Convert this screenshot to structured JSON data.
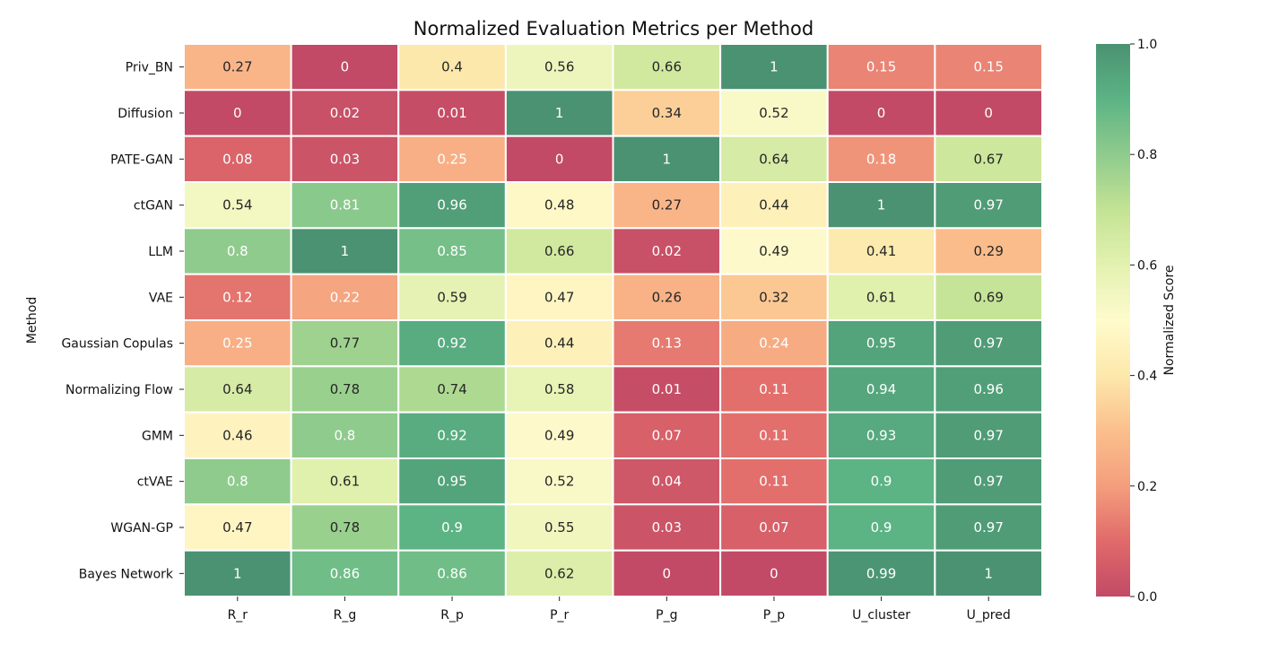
{
  "chart_data": {
    "type": "heatmap",
    "title": "Normalized Evaluation Metrics per Method",
    "xlabel": "",
    "ylabel": "Method",
    "columns": [
      "R_r",
      "R_g",
      "R_p",
      "P_r",
      "P_g",
      "P_p",
      "U_cluster",
      "U_pred"
    ],
    "rows": [
      "Priv_BN",
      "Diffusion",
      "PATE-GAN",
      "ctGAN",
      "LLM",
      "VAE",
      "Gaussian Copulas",
      "Normalizing Flow",
      "GMM",
      "ctVAE",
      "WGAN-GP",
      "Bayes Network"
    ],
    "values": [
      [
        0.27,
        0,
        0.4,
        0.56,
        0.66,
        1,
        0.15,
        0.15
      ],
      [
        0,
        0.02,
        0.01,
        1,
        0.34,
        0.52,
        0,
        0
      ],
      [
        0.08,
        0.03,
        0.25,
        0,
        1,
        0.64,
        0.18,
        0.67
      ],
      [
        0.54,
        0.81,
        0.96,
        0.48,
        0.27,
        0.44,
        1,
        0.97
      ],
      [
        0.8,
        1,
        0.85,
        0.66,
        0.02,
        0.49,
        0.41,
        0.29
      ],
      [
        0.12,
        0.22,
        0.59,
        0.47,
        0.26,
        0.32,
        0.61,
        0.69
      ],
      [
        0.25,
        0.77,
        0.92,
        0.44,
        0.13,
        0.24,
        0.95,
        0.97
      ],
      [
        0.64,
        0.78,
        0.74,
        0.58,
        0.01,
        0.11,
        0.94,
        0.96
      ],
      [
        0.46,
        0.8,
        0.92,
        0.49,
        0.07,
        0.11,
        0.93,
        0.97
      ],
      [
        0.8,
        0.61,
        0.95,
        0.52,
        0.04,
        0.11,
        0.9,
        0.97
      ],
      [
        0.47,
        0.78,
        0.9,
        0.55,
        0.03,
        0.07,
        0.9,
        0.97
      ],
      [
        1,
        0.86,
        0.86,
        0.62,
        0,
        0,
        0.99,
        1
      ]
    ],
    "colorbar": {
      "label": "Normalized Score",
      "range": [
        0,
        1
      ],
      "ticks": [
        "0.0",
        "0.2",
        "0.4",
        "0.6",
        "0.8",
        "1.0"
      ],
      "colormap": [
        "#c24a66",
        "#e06a6a",
        "#f49e7d",
        "#fbbf8c",
        "#fde8ab",
        "#fefbcd",
        "#e3f1b0",
        "#c3e394",
        "#8fcb8d",
        "#5cb384",
        "#4a9272"
      ]
    },
    "grid": false,
    "legend": "right"
  }
}
